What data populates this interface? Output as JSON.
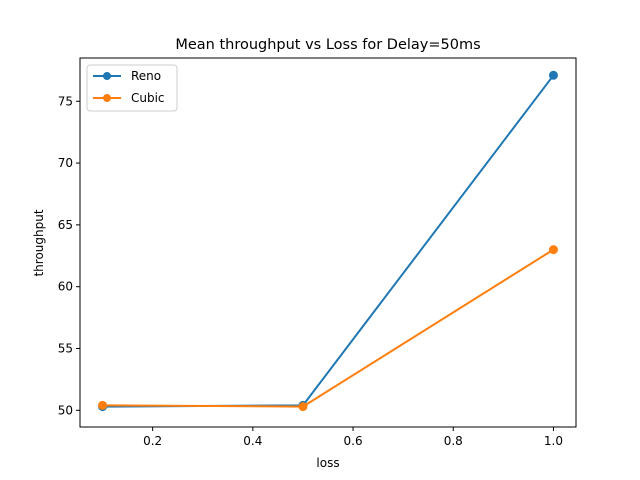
{
  "chart_data": {
    "type": "line",
    "title": "Mean throughput vs Loss for Delay=50ms",
    "xlabel": "loss",
    "ylabel": "throughput",
    "xlim": [
      0.055,
      1.045
    ],
    "ylim": [
      48.65,
      78.5
    ],
    "xticks": [
      "0.2",
      "0.4",
      "0.6",
      "0.8",
      "1.0"
    ],
    "xtick_values": [
      0.2,
      0.4,
      0.6,
      0.8,
      1.0
    ],
    "yticks": [
      "50",
      "55",
      "60",
      "65",
      "70",
      "75"
    ],
    "ytick_values": [
      50,
      55,
      60,
      65,
      70,
      75
    ],
    "grid": false,
    "legend_position": "top-left",
    "x": [
      0.1,
      0.5,
      1.0
    ],
    "series": [
      {
        "name": "Reno",
        "color": "#1f77b4",
        "values": [
          50.3,
          50.4,
          77.1
        ]
      },
      {
        "name": "Cubic",
        "color": "#ff7f0e",
        "values": [
          50.4,
          50.3,
          63.0
        ]
      }
    ]
  }
}
